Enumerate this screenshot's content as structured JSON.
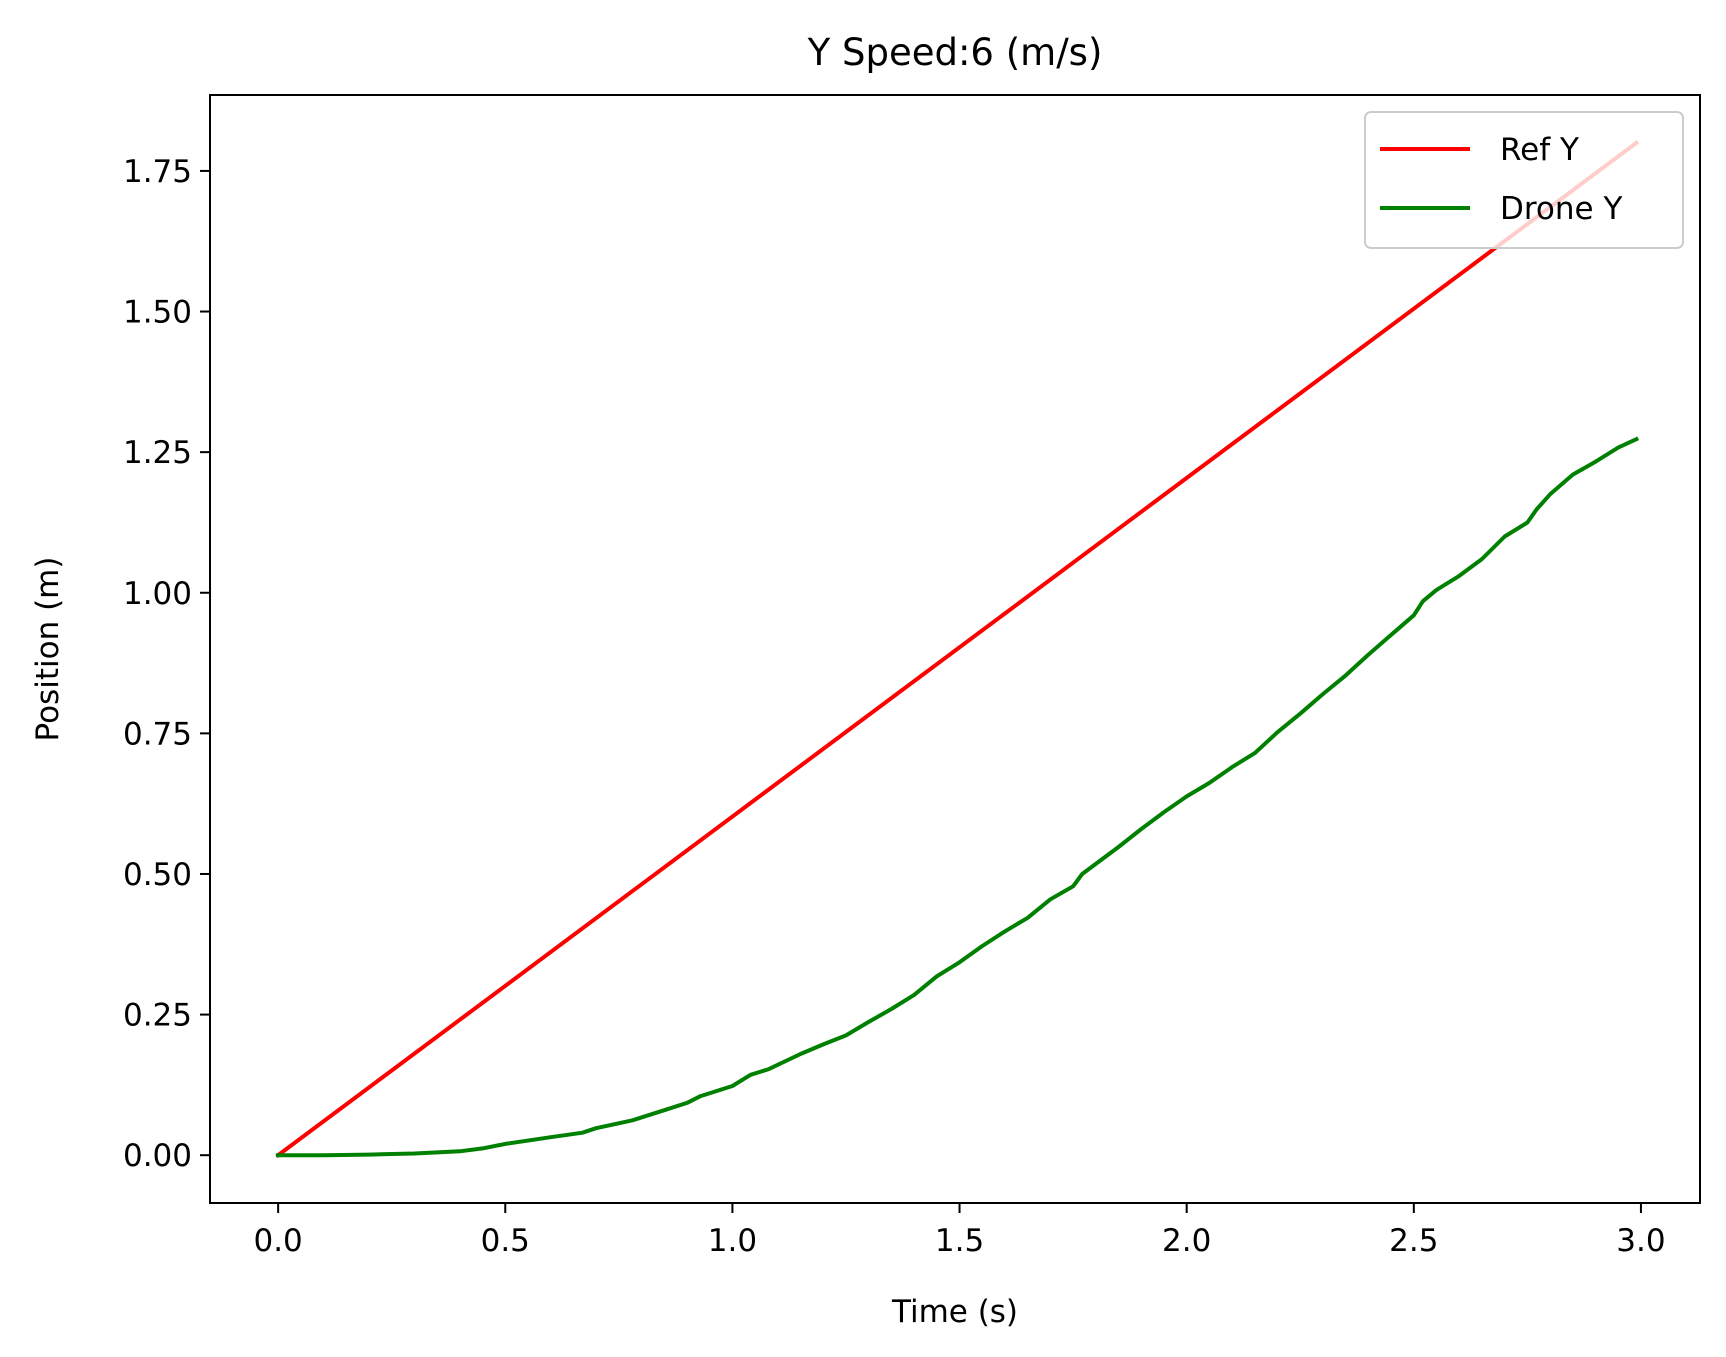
{
  "chart_data": {
    "type": "line",
    "title": "Y Speed:6 (m/s)",
    "xlabel": "Time (s)",
    "ylabel": "Position (m)",
    "xlim": [
      -0.15,
      3.13
    ],
    "ylim": [
      -0.085,
      1.885
    ],
    "xticks": [
      0.0,
      0.5,
      1.0,
      1.5,
      2.0,
      2.5,
      3.0
    ],
    "xtick_labels": [
      "0.0",
      "0.5",
      "1.0",
      "1.5",
      "2.0",
      "2.5",
      "3.0"
    ],
    "yticks": [
      0.0,
      0.25,
      0.5,
      0.75,
      1.0,
      1.25,
      1.5,
      1.75
    ],
    "ytick_labels": [
      "0.00",
      "0.25",
      "0.50",
      "0.75",
      "1.00",
      "1.25",
      "1.50",
      "1.75"
    ],
    "grid": false,
    "legend_position": "top-right",
    "series": [
      {
        "name": "Ref Y",
        "color": "#ff0000",
        "x": [
          0.0,
          2.99
        ],
        "y": [
          0.0,
          1.8
        ]
      },
      {
        "name": "Drone Y",
        "color": "#008000",
        "x": [
          0.0,
          0.1,
          0.2,
          0.3,
          0.4,
          0.45,
          0.5,
          0.6,
          0.67,
          0.7,
          0.78,
          0.85,
          0.9,
          0.93,
          1.0,
          1.04,
          1.08,
          1.15,
          1.2,
          1.25,
          1.3,
          1.35,
          1.4,
          1.45,
          1.5,
          1.55,
          1.6,
          1.65,
          1.7,
          1.75,
          1.77,
          1.8,
          1.85,
          1.9,
          1.95,
          2.0,
          2.05,
          2.1,
          2.15,
          2.2,
          2.25,
          2.3,
          2.35,
          2.4,
          2.45,
          2.5,
          2.52,
          2.55,
          2.6,
          2.65,
          2.7,
          2.75,
          2.77,
          2.8,
          2.85,
          2.9,
          2.95,
          2.99
        ],
        "y": [
          0.0,
          0.0,
          0.001,
          0.003,
          0.007,
          0.012,
          0.02,
          0.032,
          0.04,
          0.048,
          0.062,
          0.08,
          0.093,
          0.105,
          0.123,
          0.143,
          0.153,
          0.18,
          0.197,
          0.213,
          0.237,
          0.26,
          0.285,
          0.318,
          0.343,
          0.372,
          0.398,
          0.422,
          0.455,
          0.478,
          0.5,
          0.518,
          0.548,
          0.58,
          0.61,
          0.638,
          0.662,
          0.69,
          0.715,
          0.752,
          0.785,
          0.82,
          0.853,
          0.89,
          0.925,
          0.96,
          0.985,
          1.005,
          1.03,
          1.06,
          1.1,
          1.125,
          1.148,
          1.175,
          1.21,
          1.233,
          1.258,
          1.273
        ]
      }
    ]
  }
}
